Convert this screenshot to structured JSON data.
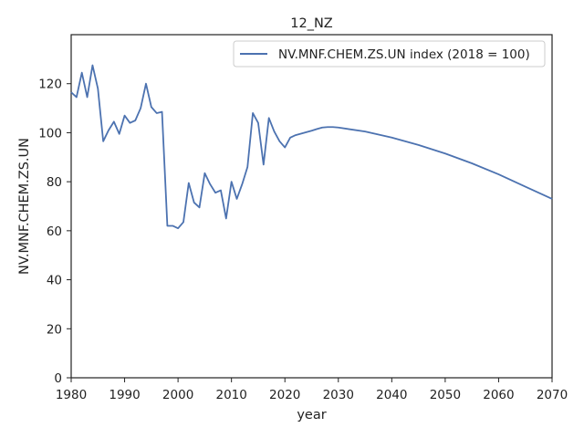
{
  "chart_data": {
    "type": "line",
    "title": "12_NZ",
    "xlabel": "year",
    "ylabel": "NV.MNF.CHEM.ZS.UN",
    "xlim": [
      1980,
      2070
    ],
    "ylim": [
      0,
      140
    ],
    "x_ticks": [
      1980,
      1990,
      2000,
      2010,
      2020,
      2030,
      2040,
      2050,
      2060,
      2070
    ],
    "y_ticks": [
      0,
      20,
      40,
      60,
      80,
      100,
      120
    ],
    "grid": false,
    "legend_position": "upper right",
    "series": [
      {
        "name": "NV.MNF.CHEM.ZS.UN index (2018 = 100)",
        "color": "#4c72b0",
        "x": [
          1980,
          1981,
          1982,
          1983,
          1984,
          1985,
          1986,
          1987,
          1988,
          1989,
          1990,
          1991,
          1992,
          1993,
          1994,
          1995,
          1996,
          1997,
          1998,
          1999,
          2000,
          2001,
          2002,
          2003,
          2004,
          2005,
          2006,
          2007,
          2008,
          2009,
          2010,
          2011,
          2012,
          2013,
          2014,
          2015,
          2016,
          2017,
          2018,
          2019,
          2020,
          2021,
          2022,
          2023,
          2024,
          2025,
          2026,
          2027,
          2028,
          2029,
          2030,
          2035,
          2040,
          2045,
          2050,
          2055,
          2060,
          2065,
          2070
        ],
        "y": [
          116.5,
          114.5,
          124.5,
          114.5,
          127.5,
          118,
          96.5,
          101,
          104.5,
          99.5,
          107,
          104,
          105,
          110,
          120,
          110.5,
          108,
          108.5,
          62,
          62,
          61,
          63.5,
          79.5,
          71.5,
          69.5,
          83.5,
          79,
          75.5,
          76.5,
          65,
          80,
          73,
          79,
          86,
          108,
          104,
          87,
          106,
          100.5,
          96.5,
          94,
          98,
          99,
          99.6,
          100.2,
          100.8,
          101.5,
          102.1,
          102.3,
          102.3,
          102.1,
          100.5,
          98,
          95,
          91.5,
          87.5,
          83,
          78,
          73
        ]
      }
    ]
  }
}
